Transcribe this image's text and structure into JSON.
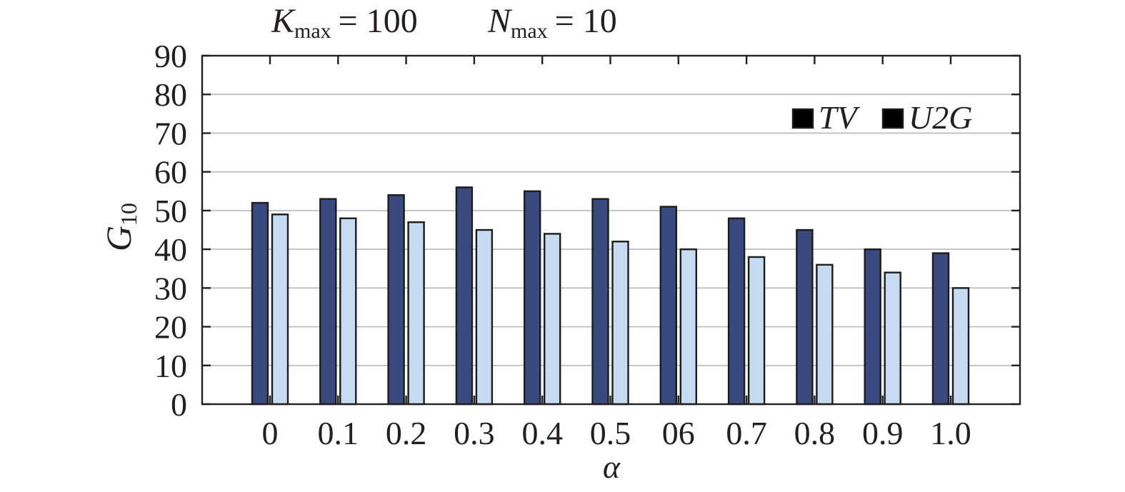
{
  "chart_data": {
    "type": "bar",
    "header": {
      "k_symbol": "K",
      "k_subscript": "max",
      "k_value": "= 100",
      "n_symbol": "N",
      "n_subscript": "max",
      "n_value": "= 10"
    },
    "ylabel": {
      "symbol": "G",
      "subscript": "10"
    },
    "xlabel": "α",
    "categories": [
      "0",
      "0.1",
      "0.2",
      "0.3",
      "0.4",
      "0.5",
      "06",
      "0.7",
      "0.8",
      "0.9",
      "1.0"
    ],
    "yticks": [
      "0",
      "10",
      "20",
      "30",
      "40",
      "50",
      "60",
      "70",
      "80",
      "90"
    ],
    "ylim": [
      0,
      90
    ],
    "grid": true,
    "legend_position": "top-right",
    "series": [
      {
        "name": "TV",
        "color": "#3b4a7e",
        "values": [
          52,
          53,
          54,
          56,
          55,
          53,
          51,
          48,
          45,
          40,
          39
        ]
      },
      {
        "name": "U2G",
        "color": "#c6daf2",
        "values": [
          49,
          48,
          47,
          45,
          44,
          42,
          40,
          38,
          36,
          34,
          30
        ]
      }
    ]
  }
}
